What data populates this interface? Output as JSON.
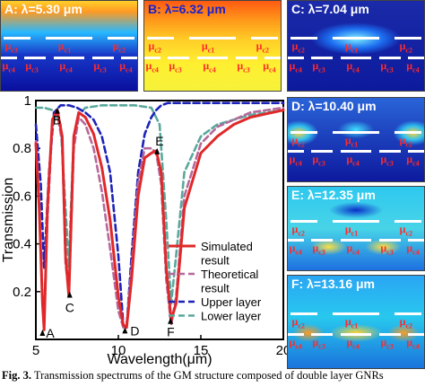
{
  "colors": {
    "simulated": "#e0282a",
    "theoretical": "#b5699b",
    "upper": "#1c22b8",
    "lower": "#5aa89c"
  },
  "panels": [
    {
      "id": "A",
      "label": "A: λ=5.30 μm",
      "top_labels": [
        "μc3",
        "μc1",
        "μc2"
      ],
      "bottom_labels": [
        "μc4",
        "μc3",
        "μc4",
        "μc3",
        "μc4"
      ]
    },
    {
      "id": "B",
      "label": "B: λ=6.32 μm",
      "top_labels": [
        "μc2",
        "μc1",
        "μc2"
      ],
      "bottom_labels": [
        "μc4",
        "μc3",
        "μc4",
        "μc3",
        "μc4"
      ]
    },
    {
      "id": "C",
      "label": "C: λ=7.04 μm",
      "top_labels": [
        "μc2",
        "μc1",
        "μc2"
      ],
      "bottom_labels": [
        "μc4",
        "μc3",
        "μc4",
        "μc3",
        "μc4"
      ]
    },
    {
      "id": "D",
      "label": "D: λ=10.40 μm",
      "top_labels": [
        "μc2",
        "μc1",
        "μc2"
      ],
      "bottom_labels": [
        "μc4",
        "μc3",
        "μc4",
        "μc3",
        "μc4"
      ]
    },
    {
      "id": "E",
      "label": "E: λ=12.35 μm",
      "top_labels": [
        "μc2",
        "μc1",
        "μc2"
      ],
      "bottom_labels": [
        "μc4",
        "μc3",
        "μc4",
        "μc3",
        "μc4"
      ]
    },
    {
      "id": "F",
      "label": "F: λ=13.16 μm",
      "top_labels": [
        "μc2",
        "μc1",
        "μc2"
      ],
      "bottom_labels": [
        "μc4",
        "μc3",
        "μc4",
        "μc3",
        "μc4"
      ]
    }
  ],
  "chart_data": {
    "type": "line",
    "xlabel": "Wavelength(μm)",
    "ylabel": "Transmission",
    "xlim": [
      5,
      20
    ],
    "ylim": [
      0,
      1
    ],
    "xticks": [
      5,
      10,
      15,
      20
    ],
    "yticks": [
      0.2,
      0.4,
      0.6,
      0.8,
      1
    ],
    "legend_position": "lower-right",
    "series": [
      {
        "name": "Simulated result",
        "x": [
          5.0,
          5.2,
          5.4,
          5.5,
          5.7,
          6.0,
          6.3,
          6.6,
          6.8,
          7.0,
          7.1,
          7.3,
          7.6,
          8.0,
          8.5,
          9.0,
          9.5,
          10.0,
          10.3,
          10.5,
          10.8,
          11.2,
          11.6,
          12.0,
          12.3,
          12.6,
          12.9,
          13.2,
          13.5,
          14.0,
          15.0,
          16.0,
          17.0,
          18.0,
          20.0
        ],
        "y": [
          0.82,
          0.55,
          0.15,
          0.04,
          0.55,
          0.92,
          0.96,
          0.85,
          0.35,
          0.18,
          0.4,
          0.85,
          0.95,
          0.93,
          0.86,
          0.72,
          0.5,
          0.18,
          0.06,
          0.05,
          0.25,
          0.6,
          0.76,
          0.78,
          0.79,
          0.7,
          0.3,
          0.08,
          0.15,
          0.55,
          0.78,
          0.85,
          0.9,
          0.93,
          0.96
        ]
      },
      {
        "name": "Theoretical result",
        "x": [
          5.0,
          5.2,
          5.4,
          5.5,
          5.7,
          6.0,
          6.3,
          6.6,
          6.8,
          7.0,
          7.1,
          7.3,
          7.6,
          8.0,
          8.5,
          9.0,
          9.5,
          10.0,
          10.3,
          10.5,
          10.8,
          11.2,
          11.6,
          12.0,
          12.3,
          12.6,
          12.9,
          13.2,
          13.5,
          14.0,
          15.0,
          16.0,
          17.0,
          18.0,
          20.0
        ],
        "y": [
          0.83,
          0.57,
          0.18,
          0.06,
          0.5,
          0.9,
          0.95,
          0.82,
          0.32,
          0.19,
          0.38,
          0.8,
          0.93,
          0.9,
          0.8,
          0.62,
          0.38,
          0.12,
          0.05,
          0.06,
          0.3,
          0.66,
          0.8,
          0.8,
          0.78,
          0.65,
          0.25,
          0.06,
          0.18,
          0.6,
          0.82,
          0.89,
          0.92,
          0.95,
          0.97
        ]
      },
      {
        "name": "Upper layer",
        "x": [
          5.0,
          5.3,
          5.5,
          5.8,
          6.1,
          6.5,
          7.0,
          7.5,
          8.0,
          8.5,
          9.0,
          9.5,
          10.0,
          10.3,
          10.5,
          10.8,
          11.2,
          11.6,
          12.0,
          12.3,
          12.6,
          13.0,
          14.0,
          15.0,
          16.0,
          18.0,
          20.0
        ],
        "y": [
          0.9,
          0.65,
          0.3,
          0.7,
          0.95,
          0.98,
          0.98,
          0.97,
          0.95,
          0.92,
          0.85,
          0.7,
          0.35,
          0.06,
          0.05,
          0.35,
          0.7,
          0.86,
          0.93,
          0.96,
          0.98,
          0.99,
          0.99,
          0.99,
          0.99,
          0.99,
          0.99
        ]
      },
      {
        "name": "Lower layer",
        "x": [
          5.0,
          5.5,
          6.0,
          6.5,
          6.8,
          7.0,
          7.1,
          7.3,
          7.6,
          8.0,
          9.0,
          10.0,
          11.0,
          12.0,
          12.5,
          12.9,
          13.2,
          13.5,
          14.0,
          15.0,
          16.0,
          17.0,
          18.0,
          20.0
        ],
        "y": [
          0.97,
          0.97,
          0.96,
          0.9,
          0.55,
          0.3,
          0.5,
          0.85,
          0.94,
          0.97,
          0.98,
          0.98,
          0.98,
          0.97,
          0.9,
          0.5,
          0.15,
          0.35,
          0.7,
          0.85,
          0.9,
          0.92,
          0.94,
          0.96
        ]
      }
    ],
    "annotations": [
      {
        "label": "A",
        "x": 5.4,
        "y": 0.03
      },
      {
        "label": "B",
        "x": 6.3,
        "y": 0.96
      },
      {
        "label": "C",
        "x": 7.05,
        "y": 0.19
      },
      {
        "label": "D",
        "x": 10.4,
        "y": 0.04
      },
      {
        "label": "E",
        "x": 12.35,
        "y": 0.79
      },
      {
        "label": "F",
        "x": 13.16,
        "y": 0.08
      }
    ]
  },
  "caption": {
    "prefix": "Fig. 3.",
    "text": "Transmission spectrums of the GM structure composed of double layer GNRs"
  }
}
